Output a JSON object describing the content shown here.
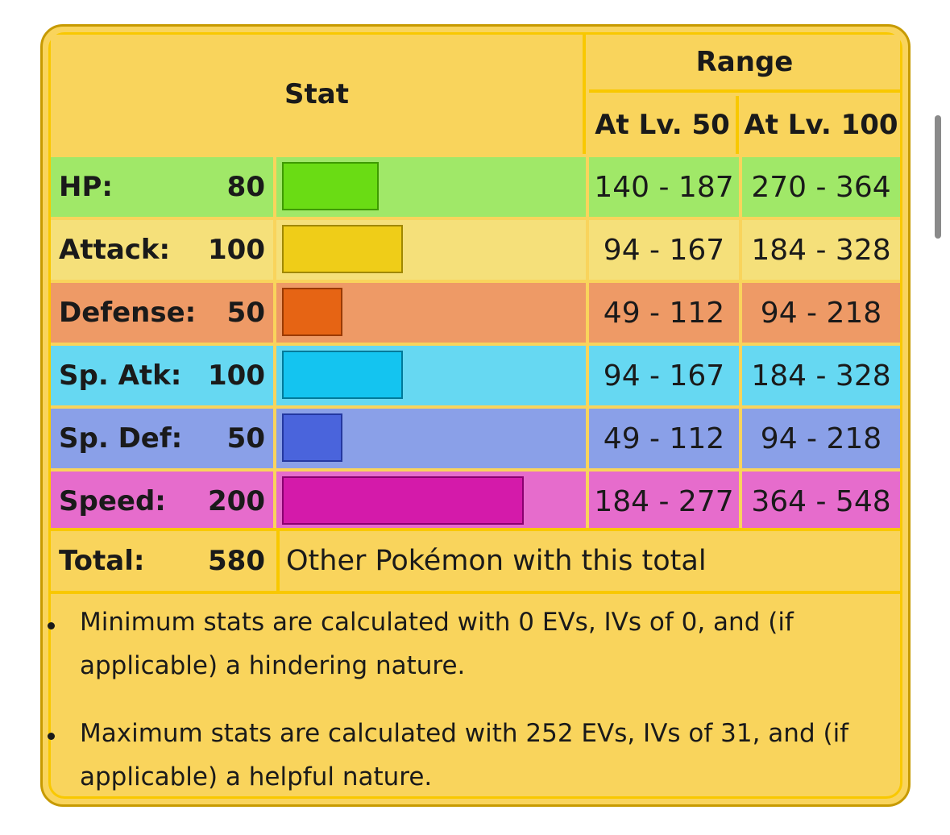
{
  "header": {
    "stat_label": "Stat",
    "range_label": "Range",
    "lv50_label": "At Lv. 50",
    "lv100_label": "At Lv. 100"
  },
  "stats": [
    {
      "name": "HP:",
      "value": "80",
      "lv50": "140 - 187",
      "lv100": "270 - 364",
      "row_color": "#a0e868",
      "bar_color": "#6adc14",
      "bar_border": "#3e9a00"
    },
    {
      "name": "Attack:",
      "value": "100",
      "lv50": "94 - 167",
      "lv100": "184 - 328",
      "row_color": "#f5e07a",
      "bar_color": "#efcd18",
      "bar_border": "#a08800"
    },
    {
      "name": "Defense:",
      "value": "50",
      "lv50": "49 - 112",
      "lv100": "94 - 218",
      "row_color": "#ee9a66",
      "bar_color": "#e66414",
      "bar_border": "#9a3a00"
    },
    {
      "name": "Sp. Atk:",
      "value": "100",
      "lv50": "94 - 167",
      "lv100": "184 - 328",
      "row_color": "#66d8f2",
      "bar_color": "#14c4f0",
      "bar_border": "#007a9a"
    },
    {
      "name": "Sp. Def:",
      "value": "50",
      "lv50": "49 - 112",
      "lv100": "94 - 218",
      "row_color": "#8aa0e8",
      "bar_color": "#4a64dc",
      "bar_border": "#2438a0"
    },
    {
      "name": "Speed:",
      "value": "200",
      "lv50": "184 - 277",
      "lv100": "364 - 548",
      "row_color": "#e66ccc",
      "bar_color": "#d41aaa",
      "bar_border": "#8a0070"
    }
  ],
  "total": {
    "label": "Total:",
    "value": "580",
    "link": "Other Pokémon with this total"
  },
  "notes": [
    "Minimum stats are calculated with 0 EVs, IVs of 0, and (if applicable) a hindering nature.",
    "Maximum stats are calculated with 252 EVs, IVs of 31, and (if applicable) a helpful nature."
  ]
}
